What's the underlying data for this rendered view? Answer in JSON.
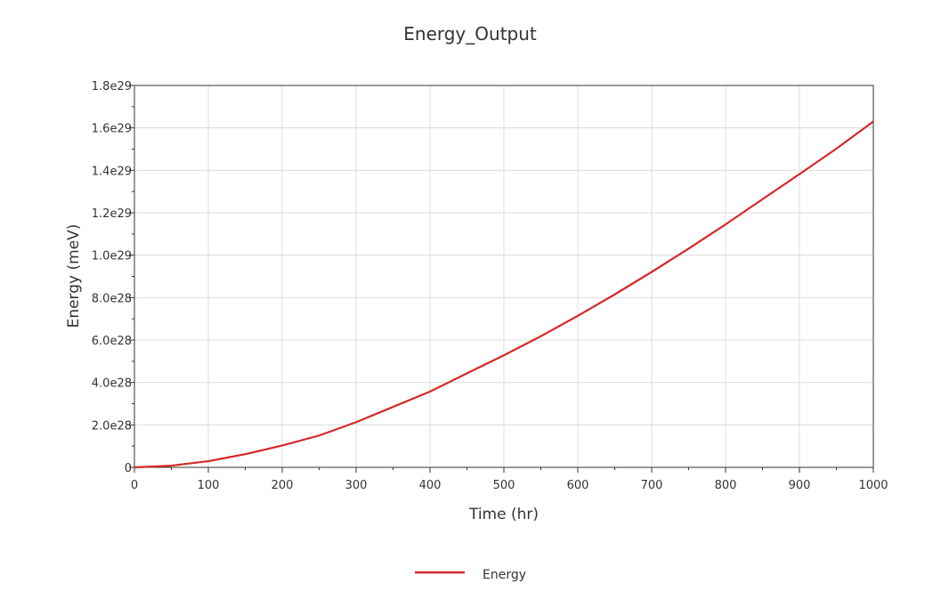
{
  "chart_data": {
    "type": "line",
    "title": "Energy_Output",
    "xlabel": "Time (hr)",
    "ylabel": "Energy (meV)",
    "xlim": [
      0,
      1000
    ],
    "ylim": [
      0,
      1.8e+29
    ],
    "x_ticks": [
      0,
      100,
      200,
      300,
      400,
      500,
      600,
      700,
      800,
      900,
      1000
    ],
    "x_tick_labels": [
      "0",
      "100",
      "200",
      "300",
      "400",
      "500",
      "600",
      "700",
      "800",
      "900",
      "1000"
    ],
    "y_ticks": [
      0,
      2e+28,
      4e+28,
      6e+28,
      8e+28,
      1e+29,
      1.2e+29,
      1.4e+29,
      1.6e+29,
      1.8e+29
    ],
    "y_tick_labels": [
      "0",
      "2.0e28",
      "4.0e28",
      "6.0e28",
      "8.0e28",
      "1.0e29",
      "1.2e29",
      "1.4e29",
      "1.6e29",
      "1.8e29"
    ],
    "grid": true,
    "legend": "bottom-center",
    "series": [
      {
        "name": "Energy",
        "color": "#d62728",
        "x": [
          0,
          50,
          100,
          150,
          200,
          250,
          300,
          350,
          400,
          450,
          500,
          550,
          600,
          650,
          700,
          750,
          800,
          850,
          900,
          950,
          1000
        ],
        "y": [
          0,
          8e+26,
          2.9e+27,
          6.2e+27,
          1.03e+28,
          1.5e+28,
          2.13e+28,
          2.85e+28,
          3.57e+28,
          4.43e+28,
          5.28e+28,
          6.18e+28,
          7.14e+28,
          8.15e+28,
          9.21e+28,
          1.031e+29,
          1.145e+29,
          1.264e+29,
          1.382e+29,
          1.502e+29,
          1.63e+29
        ]
      }
    ]
  }
}
